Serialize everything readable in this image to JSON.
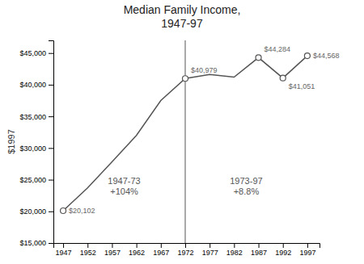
{
  "chart_data": {
    "type": "line",
    "title": "Median Family Income,\n1947-97",
    "ylabel": "$1997",
    "x": [
      1947,
      1952,
      1957,
      1962,
      1967,
      1972,
      1977,
      1982,
      1987,
      1992,
      1997
    ],
    "values": [
      20102,
      23700,
      27800,
      32000,
      37500,
      40979,
      41600,
      41200,
      44284,
      41051,
      44568
    ],
    "color": "#555555",
    "xlim": [
      1945,
      1999.5
    ],
    "xticks": [
      1947,
      1952,
      1957,
      1962,
      1967,
      1972,
      1977,
      1982,
      1987,
      1992,
      1997
    ],
    "ylim": [
      15000,
      47000
    ],
    "yticks": [
      {
        "value": 15000,
        "label": "$15,000"
      },
      {
        "value": 20000,
        "label": "$20,000"
      },
      {
        "value": 25000,
        "label": "$25,000"
      },
      {
        "value": 30000,
        "label": "$30,000"
      },
      {
        "value": 35000,
        "label": "$35,000"
      },
      {
        "value": 40000,
        "label": "$40,000"
      },
      {
        "value": 45000,
        "label": "$45,000"
      }
    ],
    "vline": 1972,
    "period_labels": [
      "1947-73\n+104%",
      "1973-97\n+8.8%"
    ],
    "annotations": [
      {
        "x": 1947,
        "y": 20102,
        "text": "$20,102"
      },
      {
        "x": 1972,
        "y": 40979,
        "text": "$40,979"
      },
      {
        "x": 1987,
        "y": 44284,
        "text": "$44,284"
      },
      {
        "x": 1992,
        "y": 41051,
        "text": "$41,051"
      },
      {
        "x": 1997,
        "y": 44568,
        "text": "$44,568"
      }
    ]
  }
}
